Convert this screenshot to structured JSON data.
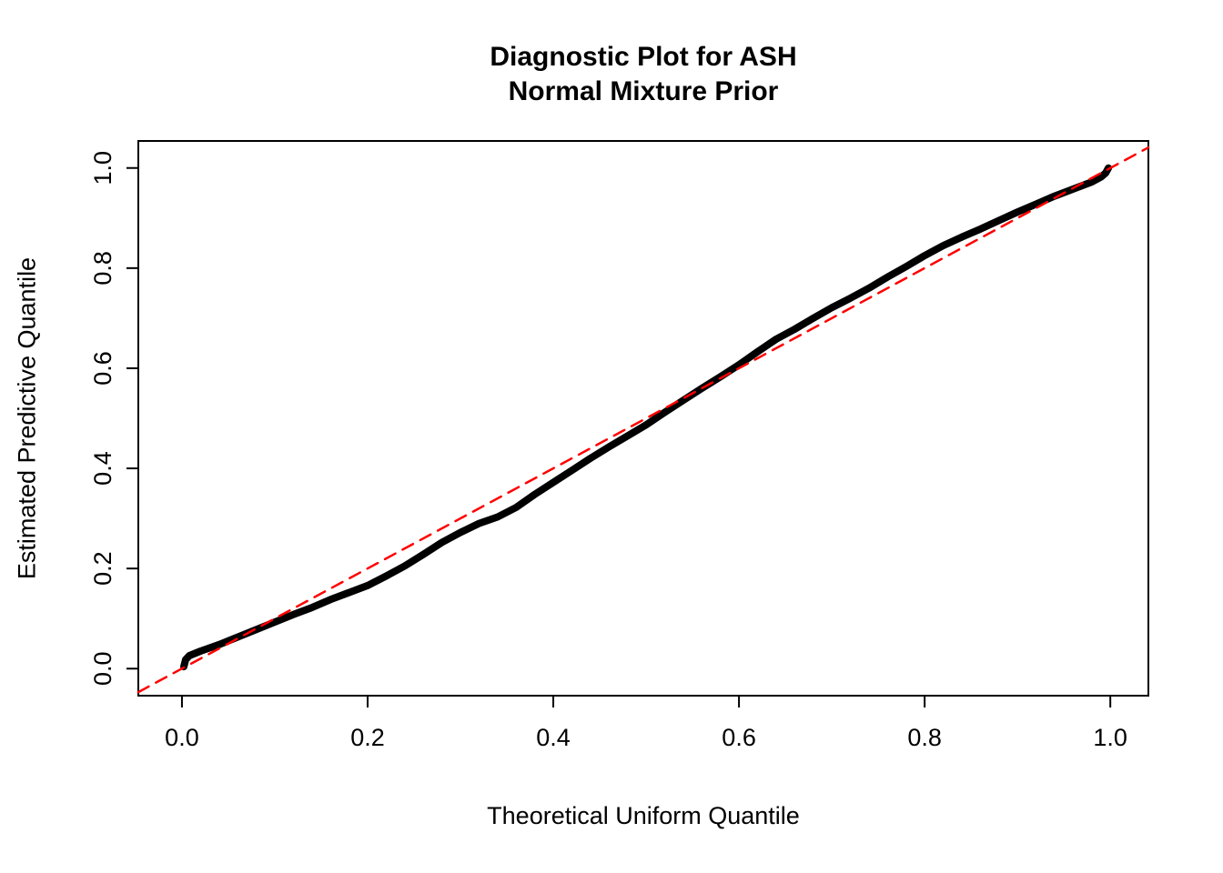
{
  "chart_data": {
    "type": "line",
    "title": "Diagnostic Plot for ASH",
    "subtitle": "Normal Mixture Prior",
    "xlabel": "Theoretical Uniform Quantile",
    "ylabel": "Estimated Predictive Quantile",
    "grid": false,
    "legend": "none",
    "axes": {
      "x_range": [
        -0.047,
        1.041
      ],
      "y_range": [
        -0.054,
        1.054
      ],
      "xticks": {
        "values": [
          0.0,
          0.2,
          0.4,
          0.6,
          0.8,
          1.0
        ],
        "labels": [
          "0.0",
          "0.2",
          "0.4",
          "0.6",
          "0.8",
          "1.0"
        ]
      },
      "yticks": {
        "values": [
          0.0,
          0.2,
          0.4,
          0.6,
          0.8,
          1.0
        ],
        "labels": [
          "0.0",
          "0.2",
          "0.4",
          "0.6",
          "0.8",
          "1.0"
        ]
      }
    },
    "colors": {
      "empirical_curve": "#000000",
      "reference_line": "#ff0000",
      "axis": "#000000"
    },
    "series": [
      {
        "name": "empirical-predictive-quantiles",
        "color": "#000000",
        "style": "solid",
        "width": 8,
        "points": [
          [
            0.002,
            0.004
          ],
          [
            0.004,
            0.018
          ],
          [
            0.008,
            0.026
          ],
          [
            0.02,
            0.035
          ],
          [
            0.04,
            0.048
          ],
          [
            0.06,
            0.063
          ],
          [
            0.08,
            0.078
          ],
          [
            0.1,
            0.093
          ],
          [
            0.12,
            0.108
          ],
          [
            0.14,
            0.122
          ],
          [
            0.16,
            0.138
          ],
          [
            0.18,
            0.152
          ],
          [
            0.2,
            0.166
          ],
          [
            0.22,
            0.185
          ],
          [
            0.24,
            0.205
          ],
          [
            0.26,
            0.228
          ],
          [
            0.28,
            0.252
          ],
          [
            0.3,
            0.272
          ],
          [
            0.32,
            0.29
          ],
          [
            0.34,
            0.303
          ],
          [
            0.36,
            0.322
          ],
          [
            0.38,
            0.348
          ],
          [
            0.4,
            0.372
          ],
          [
            0.42,
            0.396
          ],
          [
            0.44,
            0.42
          ],
          [
            0.46,
            0.443
          ],
          [
            0.48,
            0.465
          ],
          [
            0.5,
            0.487
          ],
          [
            0.52,
            0.512
          ],
          [
            0.54,
            0.536
          ],
          [
            0.56,
            0.56
          ],
          [
            0.58,
            0.583
          ],
          [
            0.6,
            0.607
          ],
          [
            0.62,
            0.633
          ],
          [
            0.64,
            0.658
          ],
          [
            0.66,
            0.678
          ],
          [
            0.68,
            0.7
          ],
          [
            0.7,
            0.721
          ],
          [
            0.72,
            0.74
          ],
          [
            0.74,
            0.76
          ],
          [
            0.76,
            0.782
          ],
          [
            0.78,
            0.803
          ],
          [
            0.8,
            0.825
          ],
          [
            0.82,
            0.845
          ],
          [
            0.84,
            0.862
          ],
          [
            0.86,
            0.878
          ],
          [
            0.88,
            0.895
          ],
          [
            0.9,
            0.912
          ],
          [
            0.92,
            0.928
          ],
          [
            0.94,
            0.944
          ],
          [
            0.96,
            0.958
          ],
          [
            0.98,
            0.972
          ],
          [
            0.99,
            0.982
          ],
          [
            0.995,
            0.99
          ],
          [
            0.998,
            1.0
          ]
        ]
      },
      {
        "name": "reference-line-y-equals-x",
        "color": "#ff0000",
        "style": "dashed",
        "width": 2.5,
        "points": [
          [
            -0.047,
            -0.047
          ],
          [
            1.041,
            1.041
          ]
        ]
      }
    ]
  }
}
